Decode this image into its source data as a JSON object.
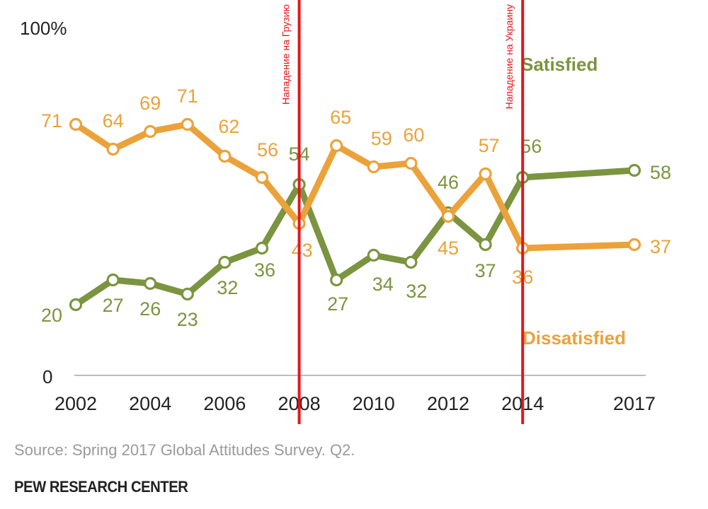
{
  "chart_data": {
    "type": "line",
    "ytop_label": "100%",
    "ybottom_label": "0",
    "ylim": [
      0,
      100
    ],
    "x_tick_labels": [
      "2002",
      "2004",
      "2006",
      "2008",
      "2010",
      "2012",
      "2014",
      "2017"
    ],
    "series": [
      {
        "name": "Satisfied",
        "color": "#7b9440",
        "x": [
          2002,
          2003,
          2004,
          2005,
          2006,
          2007,
          2008,
          2009,
          2010,
          2011,
          2012,
          2013,
          2014,
          2017
        ],
        "values": [
          20,
          27,
          26,
          23,
          32,
          36,
          54,
          27,
          34,
          32,
          46,
          37,
          56,
          58
        ]
      },
      {
        "name": "Dissatisfied",
        "color": "#eba23a",
        "x": [
          2002,
          2003,
          2004,
          2005,
          2006,
          2007,
          2008,
          2009,
          2010,
          2011,
          2012,
          2013,
          2014,
          2017
        ],
        "values": [
          71,
          64,
          69,
          71,
          62,
          56,
          43,
          65,
          59,
          60,
          45,
          57,
          36,
          37
        ]
      }
    ],
    "annotations": [
      {
        "x": 2008,
        "label": "Нападение на Грузию",
        "color": "#e3161b"
      },
      {
        "x": 2014,
        "label": "Нападение на Украину",
        "color": "#e3161b"
      }
    ]
  },
  "source": "Source: Spring 2017 Global Attitudes Survey. Q2.",
  "organization": "PEW RESEARCH CENTER"
}
